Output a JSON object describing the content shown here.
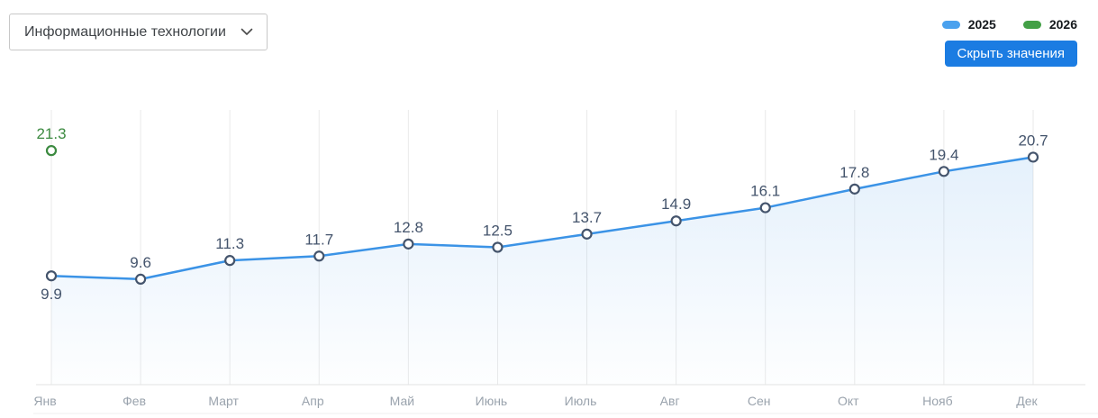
{
  "controls": {
    "category_select": {
      "value": "Информационные технологии"
    },
    "hide_values_button_label": "Скрыть значения"
  },
  "legend": {
    "items": [
      {
        "label": "2025",
        "color": "#4aa1ee"
      },
      {
        "label": "2026",
        "color": "#43a046"
      }
    ]
  },
  "colors": {
    "button": "#1b7ce2",
    "value_label": "#44546c",
    "axis_label": "#9aa3ad",
    "gridline": "#eaeaea",
    "axis_line": "#e3e3e3",
    "bottom_border": "#efefef"
  },
  "chart_data": {
    "type": "line",
    "categories": [
      "Янв",
      "Фев",
      "Март",
      "Апр",
      "Май",
      "Июнь",
      "Июль",
      "Авг",
      "Сен",
      "Окт",
      "Нояб",
      "Дек"
    ],
    "series": [
      {
        "name": "2025",
        "color": "#3b93e6",
        "marker_stroke": "#44546c",
        "area": true,
        "label_below_indices": [
          0
        ],
        "values": [
          9.9,
          9.6,
          11.3,
          11.7,
          12.8,
          12.5,
          13.7,
          14.9,
          16.1,
          17.8,
          19.4,
          20.7
        ]
      },
      {
        "name": "2026",
        "color": "#43a046",
        "marker_stroke": "#3c8a40",
        "label_color": "#3c8a40",
        "values": [
          21.3
        ]
      }
    ],
    "ylim": [
      0,
      25
    ],
    "xlabel": "",
    "ylabel": "",
    "grid": "vertical-only",
    "legend_position": "top-right",
    "value_labels_visible": true
  }
}
